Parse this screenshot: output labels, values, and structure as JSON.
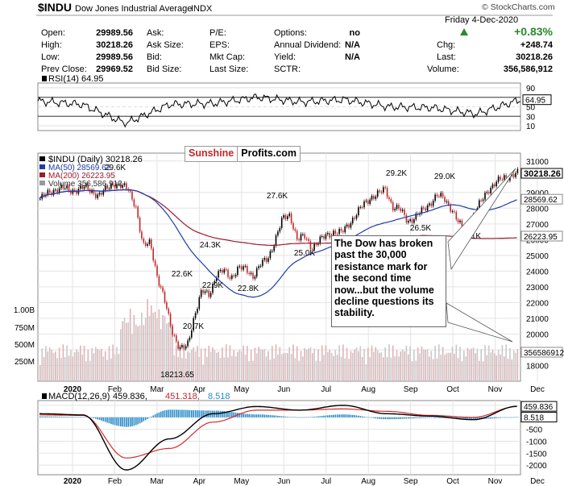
{
  "header": {
    "symbol": "$INDU",
    "name": "Dow Jones Industrial Average",
    "exchange": "INDX",
    "copyright": "© StockCharts.com",
    "date": "Friday  4-Dec-2020",
    "pct_change": "+0.83%",
    "chg_label": "Chg:",
    "chg_value": "+248.74",
    "last_label": "Last:",
    "last_value": "30218.26",
    "volume_label": "Volume:",
    "volume_value": "356,586,912",
    "open_label": "Open:",
    "open_value": "29989.56",
    "high_label": "High:",
    "high_value": "30218.26",
    "low_label": "Low:",
    "low_value": "29989.56",
    "prevclose_label": "Prev Close:",
    "prevclose_value": "29969.52",
    "ask_label": "Ask:",
    "asksize_label": "Ask Size:",
    "bid_label": "Bid:",
    "bidsize_label": "Bid Size:",
    "pe_label": "P/E:",
    "eps_label": "EPS:",
    "mktcap_label": "Mkt Cap:",
    "lastsize_label": "Last Size:",
    "options_label": "Options:",
    "options_value": "no",
    "dividend_label": "Annual Dividend:",
    "dividend_value": "N/A",
    "yield_label": "Yield:",
    "yield_value": "N/A",
    "sctr_label": "SCTR:"
  },
  "brand": {
    "part1": "Sunshine",
    "part2": "Profits.com"
  },
  "callout": {
    "text": "The Dow has broken past the 30,000 resistance mark for the second time now...but the volume decline questions its stability."
  },
  "chart_data": [
    {
      "type": "line",
      "panel": "RSI",
      "legend": "RSI(14) 64.95",
      "ylim": [
        0,
        100
      ],
      "y_ticks": [
        90,
        70,
        50,
        30,
        10
      ],
      "last_value": "64.95",
      "x": [
        "2020-01",
        "2020-02",
        "2020-03",
        "2020-04",
        "2020-05",
        "2020-06",
        "2020-07",
        "2020-08",
        "2020-09",
        "2020-10",
        "2020-11",
        "2020-12"
      ],
      "values": [
        62,
        55,
        15,
        55,
        57,
        70,
        60,
        65,
        50,
        48,
        35,
        65
      ]
    },
    {
      "type": "candlestick",
      "panel": "price",
      "legend": [
        "$INDU (Daily) 30218.26",
        "MA(50) 28569.62",
        "MA(200) 26223.95",
        "Volume 356,586,912"
      ],
      "ylim": [
        17000,
        31500
      ],
      "y_ticks": [
        31000,
        29000,
        28000,
        27000,
        26000,
        25000,
        24000,
        23000,
        22000,
        21000,
        20000,
        19000,
        18000
      ],
      "volume_ticks": [
        "1.00B",
        "750M",
        "500M",
        "250M"
      ],
      "x_ticks": [
        "2020",
        "Feb",
        "Mar",
        "Apr",
        "May",
        "Jun",
        "Jul",
        "Aug",
        "Sep",
        "Oct",
        "Nov",
        "Dec"
      ],
      "right_labels": [
        "30218.26",
        "28569.62",
        "26223.95",
        "356586912"
      ],
      "annotations": [
        {
          "label": "29.6K",
          "value": 29600
        },
        {
          "label": "27.6K",
          "value": 27600
        },
        {
          "label": "29.2K",
          "value": 29200
        },
        {
          "label": "29.0K",
          "value": 29000
        },
        {
          "label": "24.3K",
          "value": 24300
        },
        {
          "label": "22.6K",
          "value": 22600
        },
        {
          "label": "22.9K",
          "value": 22900
        },
        {
          "label": "22.8K",
          "value": 22800
        },
        {
          "label": "25.0K",
          "value": 25000
        },
        {
          "label": "26.5K",
          "value": 26500
        },
        {
          "label": "26.1K",
          "value": 26100
        },
        {
          "label": "20.7K",
          "value": 20700
        },
        {
          "label": "18213.65",
          "value": 18213.65
        }
      ],
      "close_series": [
        28600,
        28900,
        29200,
        29300,
        29100,
        29200,
        29300,
        29100,
        28800,
        29200,
        29600,
        29400,
        29200,
        28200,
        25500,
        25900,
        23500,
        22000,
        20200,
        19000,
        19200,
        21200,
        22700,
        22500,
        23800,
        24000,
        23600,
        24200,
        24100,
        23700,
        24400,
        24800,
        26000,
        27300,
        27600,
        26000,
        26200,
        25500,
        25900,
        26300,
        26500,
        26400,
        27000,
        27600,
        28200,
        28700,
        28900,
        29200,
        28100,
        27900,
        27200,
        27400,
        27800,
        28300,
        28800,
        28600,
        28000,
        27000,
        26500,
        27500,
        28400,
        29200,
        29600,
        29900,
        30100,
        30218
      ]
    },
    {
      "type": "line",
      "panel": "MACD",
      "legend": [
        "MACD(12,26,9)",
        "459.836,",
        "451.318,",
        "8.518"
      ],
      "ylim": [
        -2400,
        700
      ],
      "y_ticks": [
        500,
        0,
        -500,
        -1000,
        -1500,
        -2000
      ],
      "right_labels": [
        "459.836",
        "8.518"
      ],
      "x_ticks": [
        "2020",
        "Feb",
        "Mar",
        "Apr",
        "May",
        "Jun",
        "Jul",
        "Aug",
        "Sep",
        "Oct",
        "Nov",
        "Dec"
      ],
      "x": [
        "2020-01",
        "2020-02",
        "2020-03",
        "2020-04",
        "2020-05",
        "2020-06",
        "2020-07",
        "2020-08",
        "2020-09",
        "2020-10",
        "2020-11",
        "2020-12"
      ],
      "series": [
        {
          "name": "MACD",
          "values": [
            150,
            100,
            -2200,
            -900,
            150,
            450,
            300,
            500,
            150,
            50,
            -100,
            460
          ]
        },
        {
          "name": "Signal",
          "values": [
            100,
            80,
            -1700,
            -1300,
            -200,
            300,
            300,
            350,
            250,
            80,
            0,
            451
          ]
        }
      ]
    }
  ],
  "colors": {
    "up": "#000000",
    "down": "#c0282a",
    "ma50": "#1f3da6",
    "ma200": "#9b1c2c",
    "volume": "#c8a0a4",
    "hist": "#2a8bc8",
    "bg_header": "#ffffff"
  }
}
